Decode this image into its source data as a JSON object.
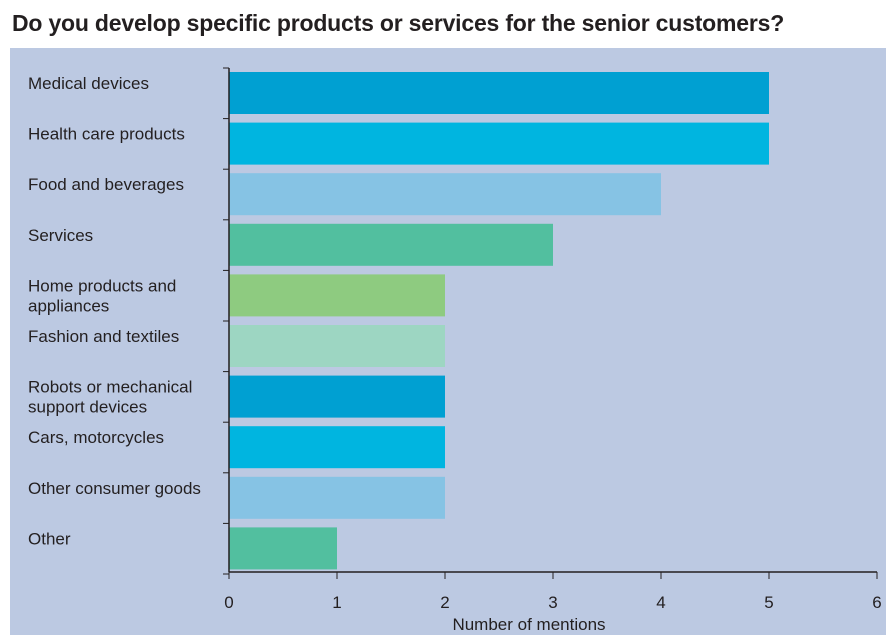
{
  "title": "Do you develop specific products or services for the senior customers?",
  "chart_data": {
    "type": "bar",
    "orientation": "horizontal",
    "title": "Do you develop specific products or services for the senior customers?",
    "xlabel": "Number of mentions",
    "ylabel": "",
    "xlim": [
      0,
      6
    ],
    "x_ticks": [
      "0",
      "1",
      "2",
      "3",
      "4",
      "5",
      "6"
    ],
    "grid": false,
    "categories": [
      [
        "Medical devices"
      ],
      [
        "Health care products"
      ],
      [
        "Food and beverages"
      ],
      [
        "Services"
      ],
      [
        "Home products and",
        "appliances"
      ],
      [
        "Fashion and textiles"
      ],
      [
        "Robots or mechanical",
        "support devices"
      ],
      [
        "Cars, motorcycles"
      ],
      [
        "Other consumer goods"
      ],
      [
        "Other"
      ]
    ],
    "values": [
      5,
      5,
      4,
      3,
      2,
      2,
      2,
      2,
      2,
      1
    ],
    "colors": [
      "#00a0d2",
      "#00b5e0",
      "#86c3e4",
      "#52bf9f",
      "#8ecb80",
      "#9dd6c2",
      "#00a0d2",
      "#00b5e0",
      "#86c3e4",
      "#52bf9f"
    ]
  }
}
